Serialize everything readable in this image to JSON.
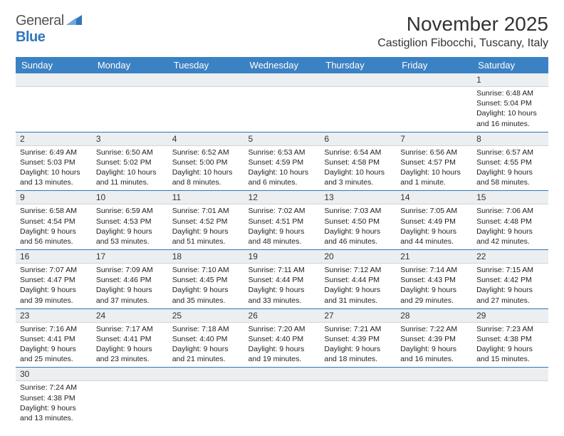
{
  "brand": {
    "part1": "General",
    "part2": "Blue"
  },
  "title": "November 2025",
  "location": "Castiglion Fibocchi, Tuscany, Italy",
  "day_headers": [
    "Sunday",
    "Monday",
    "Tuesday",
    "Wednesday",
    "Thursday",
    "Friday",
    "Saturday"
  ],
  "colors": {
    "header_bg": "#3b82c4",
    "border": "#2f77bb",
    "daynum_bg": "#eceff1"
  },
  "weeks": [
    [
      {
        "n": "",
        "sunrise": "",
        "sunset": "",
        "daylight": ""
      },
      {
        "n": "",
        "sunrise": "",
        "sunset": "",
        "daylight": ""
      },
      {
        "n": "",
        "sunrise": "",
        "sunset": "",
        "daylight": ""
      },
      {
        "n": "",
        "sunrise": "",
        "sunset": "",
        "daylight": ""
      },
      {
        "n": "",
        "sunrise": "",
        "sunset": "",
        "daylight": ""
      },
      {
        "n": "",
        "sunrise": "",
        "sunset": "",
        "daylight": ""
      },
      {
        "n": "1",
        "sunrise": "Sunrise: 6:48 AM",
        "sunset": "Sunset: 5:04 PM",
        "daylight": "Daylight: 10 hours and 16 minutes."
      }
    ],
    [
      {
        "n": "2",
        "sunrise": "Sunrise: 6:49 AM",
        "sunset": "Sunset: 5:03 PM",
        "daylight": "Daylight: 10 hours and 13 minutes."
      },
      {
        "n": "3",
        "sunrise": "Sunrise: 6:50 AM",
        "sunset": "Sunset: 5:02 PM",
        "daylight": "Daylight: 10 hours and 11 minutes."
      },
      {
        "n": "4",
        "sunrise": "Sunrise: 6:52 AM",
        "sunset": "Sunset: 5:00 PM",
        "daylight": "Daylight: 10 hours and 8 minutes."
      },
      {
        "n": "5",
        "sunrise": "Sunrise: 6:53 AM",
        "sunset": "Sunset: 4:59 PM",
        "daylight": "Daylight: 10 hours and 6 minutes."
      },
      {
        "n": "6",
        "sunrise": "Sunrise: 6:54 AM",
        "sunset": "Sunset: 4:58 PM",
        "daylight": "Daylight: 10 hours and 3 minutes."
      },
      {
        "n": "7",
        "sunrise": "Sunrise: 6:56 AM",
        "sunset": "Sunset: 4:57 PM",
        "daylight": "Daylight: 10 hours and 1 minute."
      },
      {
        "n": "8",
        "sunrise": "Sunrise: 6:57 AM",
        "sunset": "Sunset: 4:55 PM",
        "daylight": "Daylight: 9 hours and 58 minutes."
      }
    ],
    [
      {
        "n": "9",
        "sunrise": "Sunrise: 6:58 AM",
        "sunset": "Sunset: 4:54 PM",
        "daylight": "Daylight: 9 hours and 56 minutes."
      },
      {
        "n": "10",
        "sunrise": "Sunrise: 6:59 AM",
        "sunset": "Sunset: 4:53 PM",
        "daylight": "Daylight: 9 hours and 53 minutes."
      },
      {
        "n": "11",
        "sunrise": "Sunrise: 7:01 AM",
        "sunset": "Sunset: 4:52 PM",
        "daylight": "Daylight: 9 hours and 51 minutes."
      },
      {
        "n": "12",
        "sunrise": "Sunrise: 7:02 AM",
        "sunset": "Sunset: 4:51 PM",
        "daylight": "Daylight: 9 hours and 48 minutes."
      },
      {
        "n": "13",
        "sunrise": "Sunrise: 7:03 AM",
        "sunset": "Sunset: 4:50 PM",
        "daylight": "Daylight: 9 hours and 46 minutes."
      },
      {
        "n": "14",
        "sunrise": "Sunrise: 7:05 AM",
        "sunset": "Sunset: 4:49 PM",
        "daylight": "Daylight: 9 hours and 44 minutes."
      },
      {
        "n": "15",
        "sunrise": "Sunrise: 7:06 AM",
        "sunset": "Sunset: 4:48 PM",
        "daylight": "Daylight: 9 hours and 42 minutes."
      }
    ],
    [
      {
        "n": "16",
        "sunrise": "Sunrise: 7:07 AM",
        "sunset": "Sunset: 4:47 PM",
        "daylight": "Daylight: 9 hours and 39 minutes."
      },
      {
        "n": "17",
        "sunrise": "Sunrise: 7:09 AM",
        "sunset": "Sunset: 4:46 PM",
        "daylight": "Daylight: 9 hours and 37 minutes."
      },
      {
        "n": "18",
        "sunrise": "Sunrise: 7:10 AM",
        "sunset": "Sunset: 4:45 PM",
        "daylight": "Daylight: 9 hours and 35 minutes."
      },
      {
        "n": "19",
        "sunrise": "Sunrise: 7:11 AM",
        "sunset": "Sunset: 4:44 PM",
        "daylight": "Daylight: 9 hours and 33 minutes."
      },
      {
        "n": "20",
        "sunrise": "Sunrise: 7:12 AM",
        "sunset": "Sunset: 4:44 PM",
        "daylight": "Daylight: 9 hours and 31 minutes."
      },
      {
        "n": "21",
        "sunrise": "Sunrise: 7:14 AM",
        "sunset": "Sunset: 4:43 PM",
        "daylight": "Daylight: 9 hours and 29 minutes."
      },
      {
        "n": "22",
        "sunrise": "Sunrise: 7:15 AM",
        "sunset": "Sunset: 4:42 PM",
        "daylight": "Daylight: 9 hours and 27 minutes."
      }
    ],
    [
      {
        "n": "23",
        "sunrise": "Sunrise: 7:16 AM",
        "sunset": "Sunset: 4:41 PM",
        "daylight": "Daylight: 9 hours and 25 minutes."
      },
      {
        "n": "24",
        "sunrise": "Sunrise: 7:17 AM",
        "sunset": "Sunset: 4:41 PM",
        "daylight": "Daylight: 9 hours and 23 minutes."
      },
      {
        "n": "25",
        "sunrise": "Sunrise: 7:18 AM",
        "sunset": "Sunset: 4:40 PM",
        "daylight": "Daylight: 9 hours and 21 minutes."
      },
      {
        "n": "26",
        "sunrise": "Sunrise: 7:20 AM",
        "sunset": "Sunset: 4:40 PM",
        "daylight": "Daylight: 9 hours and 19 minutes."
      },
      {
        "n": "27",
        "sunrise": "Sunrise: 7:21 AM",
        "sunset": "Sunset: 4:39 PM",
        "daylight": "Daylight: 9 hours and 18 minutes."
      },
      {
        "n": "28",
        "sunrise": "Sunrise: 7:22 AM",
        "sunset": "Sunset: 4:39 PM",
        "daylight": "Daylight: 9 hours and 16 minutes."
      },
      {
        "n": "29",
        "sunrise": "Sunrise: 7:23 AM",
        "sunset": "Sunset: 4:38 PM",
        "daylight": "Daylight: 9 hours and 15 minutes."
      }
    ],
    [
      {
        "n": "30",
        "sunrise": "Sunrise: 7:24 AM",
        "sunset": "Sunset: 4:38 PM",
        "daylight": "Daylight: 9 hours and 13 minutes."
      },
      {
        "n": "",
        "sunrise": "",
        "sunset": "",
        "daylight": ""
      },
      {
        "n": "",
        "sunrise": "",
        "sunset": "",
        "daylight": ""
      },
      {
        "n": "",
        "sunrise": "",
        "sunset": "",
        "daylight": ""
      },
      {
        "n": "",
        "sunrise": "",
        "sunset": "",
        "daylight": ""
      },
      {
        "n": "",
        "sunrise": "",
        "sunset": "",
        "daylight": ""
      },
      {
        "n": "",
        "sunrise": "",
        "sunset": "",
        "daylight": ""
      }
    ]
  ]
}
